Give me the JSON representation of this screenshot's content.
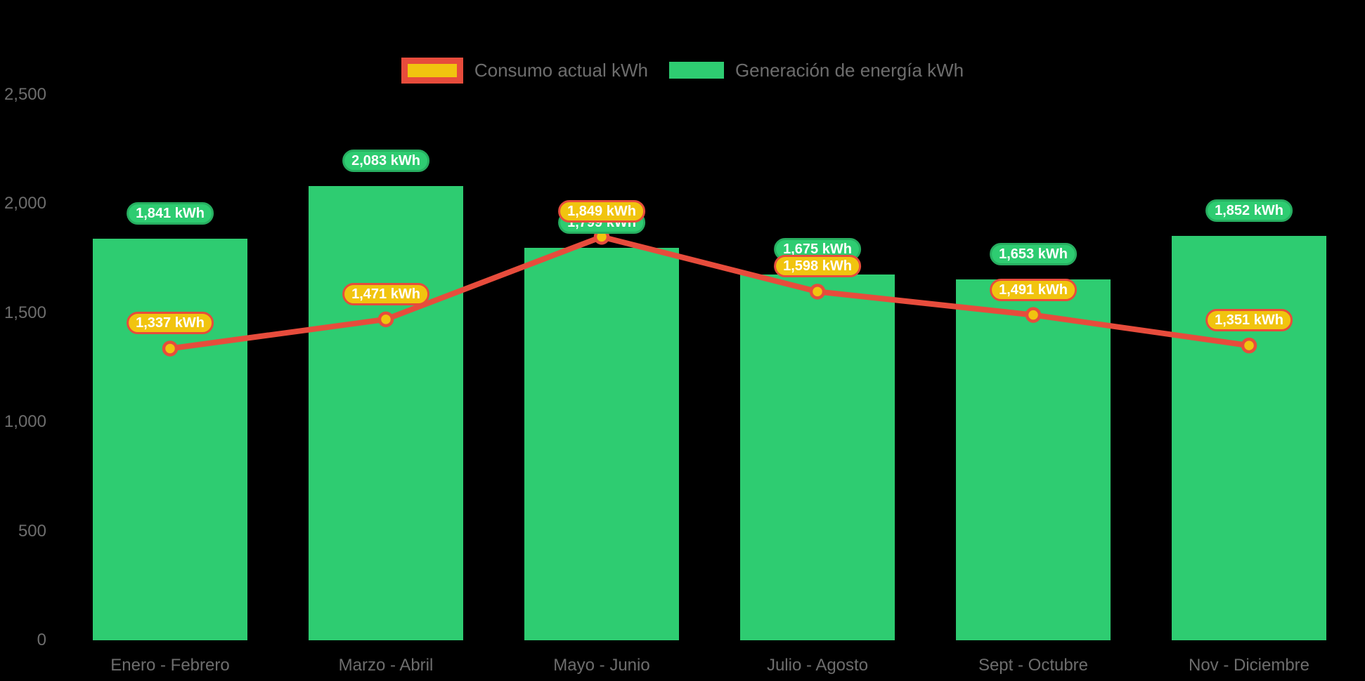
{
  "legend": {
    "items": [
      {
        "id": "consumo",
        "label": "Consumo actual kWh"
      },
      {
        "id": "generacion",
        "label": "Generación de energía kWh"
      }
    ]
  },
  "colors": {
    "background": "#000000",
    "bar_green": "#2ecc71",
    "bar_pill_border": "#27ae60",
    "line_red": "#e74c3c",
    "point_gold": "#f1c40f",
    "pill_text": "#ffffff",
    "axis_text": "#6d6d6d"
  },
  "chart_data": {
    "type": "bar",
    "categories": [
      "Enero - Febrero",
      "Marzo - Abril",
      "Mayo - Junio",
      "Julio - Agosto",
      "Sept - Octubre",
      "Nov - Diciembre"
    ],
    "series": [
      {
        "name": "Generación de energía kWh",
        "type": "bar",
        "color": "#2ecc71",
        "values": [
          1841,
          2083,
          1799,
          1675,
          1653,
          1852
        ],
        "labels": [
          "1,841 kWh",
          "2,083 kWh",
          "1,799 kWh",
          "1,675 kWh",
          "1,653 kWh",
          "1,852 kWh"
        ]
      },
      {
        "name": "Consumo actual kWh",
        "type": "line",
        "color": "#e74c3c",
        "point_color": "#f1c40f",
        "values": [
          1337,
          1471,
          1849,
          1598,
          1491,
          1351
        ],
        "labels": [
          "1,337 kWh",
          "1,471 kWh",
          "1,849 kWh",
          "1,598 kWh",
          "1,491 kWh",
          "1,351 kWh"
        ]
      }
    ],
    "title": "",
    "xlabel": "",
    "ylabel": "",
    "ylim": [
      0,
      2500
    ],
    "yticks": [
      0,
      500,
      1000,
      1500,
      2000,
      2500
    ],
    "ytick_labels": [
      "0",
      "500",
      "1,000",
      "1,500",
      "2,000",
      "2,500"
    ],
    "grid": false,
    "legend_position": "top"
  }
}
